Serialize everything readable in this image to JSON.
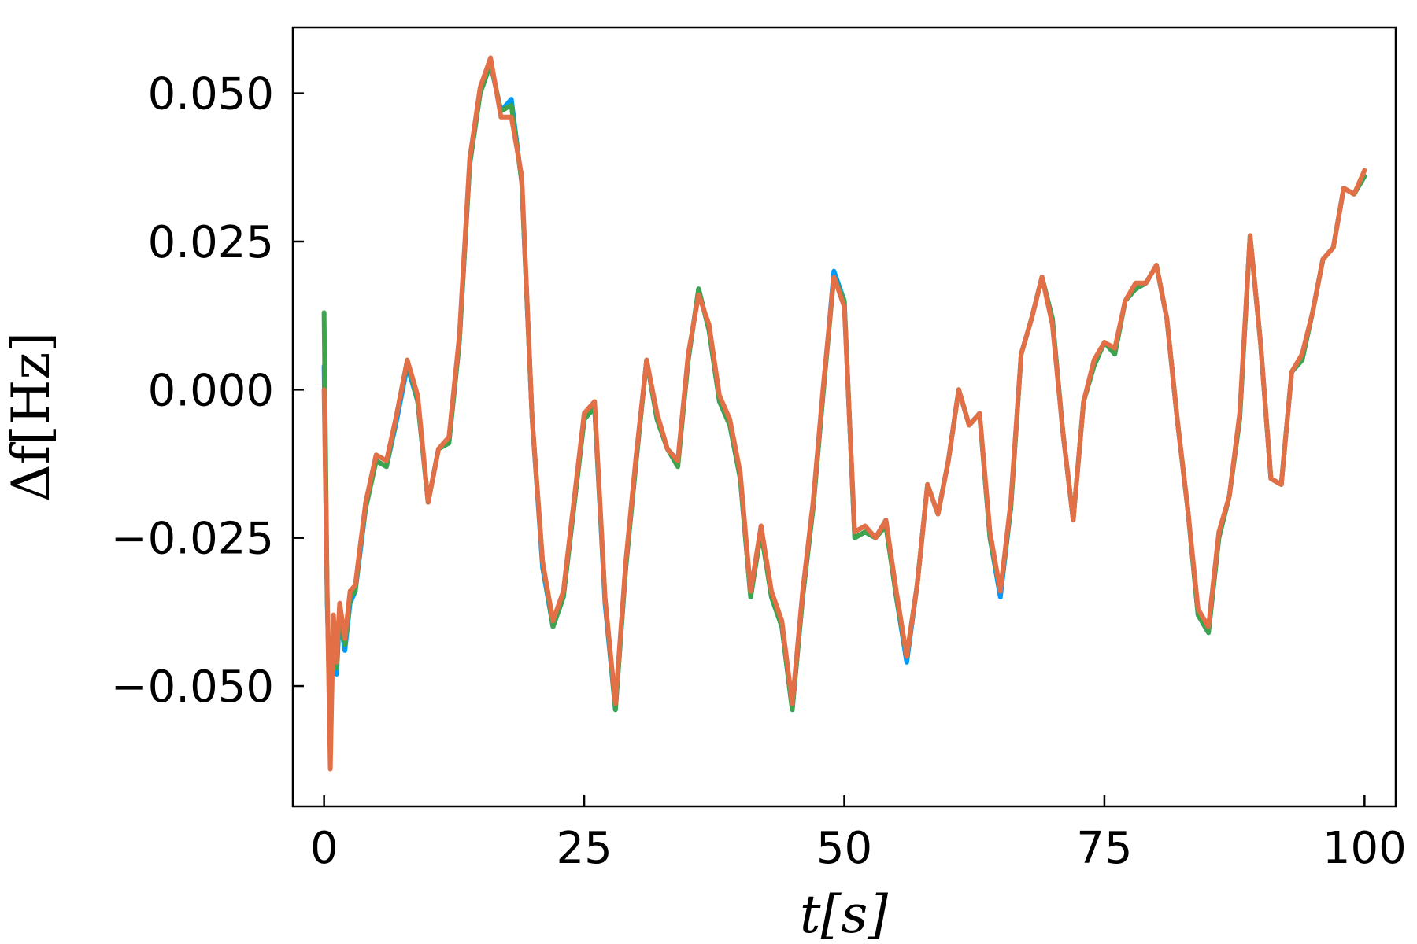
{
  "chart_data": {
    "type": "line",
    "title": "",
    "xlabel": "t[s]",
    "ylabel": "Δf[Hz]",
    "xlim": [
      -3,
      103
    ],
    "ylim": [
      -0.0703,
      0.0611
    ],
    "grid": false,
    "legend": "none",
    "x_ticks": [
      "0",
      "25",
      "50",
      "75",
      "100"
    ],
    "y_ticks": [
      "0.050",
      "0.025",
      "0.000",
      "−0.025",
      "−0.050"
    ],
    "x_tick_values": [
      0,
      25,
      50,
      75,
      100
    ],
    "y_tick_values": [
      0.05,
      0.025,
      0.0,
      -0.025,
      -0.05
    ],
    "x": [
      0,
      0.3,
      0.6,
      0.9,
      1.2,
      1.5,
      2,
      2.5,
      3,
      3.5,
      4,
      5,
      6,
      7,
      8,
      9,
      10,
      11,
      12,
      13,
      14,
      15,
      16,
      17,
      18,
      19,
      20,
      21,
      22,
      23,
      24,
      25,
      26,
      27,
      28,
      29,
      30,
      31,
      32,
      33,
      34,
      35,
      36,
      37,
      38,
      39,
      40,
      41,
      42,
      43,
      44,
      45,
      46,
      47,
      48,
      49,
      50,
      51,
      52,
      53,
      54,
      55,
      56,
      57,
      58,
      59,
      60,
      61,
      62,
      63,
      64,
      65,
      66,
      67,
      68,
      69,
      70,
      71,
      72,
      73,
      74,
      75,
      76,
      77,
      78,
      79,
      80,
      81,
      82,
      83,
      84,
      85,
      86,
      87,
      88,
      89,
      90,
      91,
      92,
      93,
      94,
      95,
      96,
      97,
      98,
      99,
      100
    ],
    "series": [
      {
        "color": "#009afa",
        "values": [
          0.004,
          -0.036,
          -0.055,
          -0.04,
          -0.048,
          -0.038,
          -0.044,
          -0.036,
          -0.034,
          -0.027,
          -0.02,
          -0.012,
          -0.013,
          -0.005,
          0.004,
          -0.002,
          -0.019,
          -0.01,
          -0.009,
          0.008,
          0.038,
          0.05,
          0.055,
          0.047,
          0.049,
          0.035,
          -0.005,
          -0.03,
          -0.04,
          -0.035,
          -0.02,
          -0.005,
          -0.003,
          -0.036,
          -0.054,
          -0.03,
          -0.012,
          0.005,
          -0.005,
          -0.01,
          -0.012,
          0.005,
          0.017,
          0.01,
          -0.002,
          -0.006,
          -0.015,
          -0.035,
          -0.023,
          -0.035,
          -0.04,
          -0.054,
          -0.035,
          -0.02,
          0.0,
          0.02,
          0.015,
          -0.025,
          -0.024,
          -0.025,
          -0.022,
          -0.035,
          -0.046,
          -0.033,
          -0.016,
          -0.021,
          -0.012,
          0.0,
          -0.006,
          -0.004,
          -0.025,
          -0.035,
          -0.02,
          0.006,
          0.012,
          0.019,
          0.012,
          -0.007,
          -0.022,
          -0.002,
          0.004,
          0.008,
          0.006,
          0.015,
          0.017,
          0.018,
          0.021,
          0.012,
          -0.005,
          -0.02,
          -0.038,
          -0.041,
          -0.025,
          -0.018,
          -0.005,
          0.026,
          0.008,
          -0.015,
          -0.016,
          0.003,
          0.005,
          0.013,
          0.022,
          0.024,
          0.034,
          0.033,
          0.036
        ]
      },
      {
        "color": "#3da44d",
        "values": [
          0.013,
          -0.035,
          -0.056,
          -0.039,
          -0.047,
          -0.037,
          -0.043,
          -0.035,
          -0.034,
          -0.026,
          -0.02,
          -0.012,
          -0.013,
          -0.004,
          0.005,
          -0.002,
          -0.019,
          -0.01,
          -0.009,
          0.008,
          0.038,
          0.05,
          0.055,
          0.047,
          0.048,
          0.035,
          -0.005,
          -0.029,
          -0.04,
          -0.035,
          -0.02,
          -0.005,
          -0.003,
          -0.035,
          -0.054,
          -0.03,
          -0.012,
          0.005,
          -0.005,
          -0.01,
          -0.013,
          0.005,
          0.017,
          0.01,
          -0.002,
          -0.006,
          -0.015,
          -0.035,
          -0.024,
          -0.035,
          -0.04,
          -0.054,
          -0.035,
          -0.02,
          0.0,
          0.019,
          0.015,
          -0.025,
          -0.024,
          -0.025,
          -0.023,
          -0.035,
          -0.045,
          -0.033,
          -0.016,
          -0.021,
          -0.012,
          0.0,
          -0.006,
          -0.004,
          -0.025,
          -0.034,
          -0.02,
          0.006,
          0.012,
          0.019,
          0.012,
          -0.007,
          -0.022,
          -0.002,
          0.004,
          0.008,
          0.006,
          0.015,
          0.017,
          0.018,
          0.021,
          0.012,
          -0.005,
          -0.02,
          -0.038,
          -0.041,
          -0.025,
          -0.018,
          -0.005,
          0.026,
          0.008,
          -0.015,
          -0.016,
          0.003,
          0.005,
          0.013,
          0.022,
          0.024,
          0.034,
          0.033,
          0.036
        ]
      },
      {
        "color": "#e26f46",
        "values": [
          0.0,
          -0.034,
          -0.064,
          -0.038,
          -0.046,
          -0.036,
          -0.042,
          -0.034,
          -0.033,
          -0.026,
          -0.019,
          -0.011,
          -0.012,
          -0.004,
          0.005,
          -0.001,
          -0.019,
          -0.01,
          -0.008,
          0.009,
          0.039,
          0.051,
          0.056,
          0.046,
          0.046,
          0.036,
          -0.005,
          -0.029,
          -0.039,
          -0.034,
          -0.019,
          -0.004,
          -0.002,
          -0.035,
          -0.053,
          -0.029,
          -0.011,
          0.005,
          -0.004,
          -0.01,
          -0.012,
          0.006,
          0.016,
          0.011,
          -0.001,
          -0.005,
          -0.014,
          -0.034,
          -0.023,
          -0.034,
          -0.039,
          -0.053,
          -0.034,
          -0.019,
          0.001,
          0.019,
          0.014,
          -0.024,
          -0.023,
          -0.025,
          -0.022,
          -0.034,
          -0.045,
          -0.033,
          -0.016,
          -0.021,
          -0.012,
          0.0,
          -0.006,
          -0.004,
          -0.024,
          -0.034,
          -0.019,
          0.006,
          0.012,
          0.019,
          0.011,
          -0.007,
          -0.022,
          -0.002,
          0.005,
          0.008,
          0.007,
          0.015,
          0.018,
          0.018,
          0.021,
          0.012,
          -0.005,
          -0.02,
          -0.037,
          -0.04,
          -0.024,
          -0.018,
          -0.004,
          0.026,
          0.008,
          -0.015,
          -0.016,
          0.003,
          0.006,
          0.013,
          0.022,
          0.024,
          0.034,
          0.033,
          0.037
        ]
      }
    ]
  }
}
